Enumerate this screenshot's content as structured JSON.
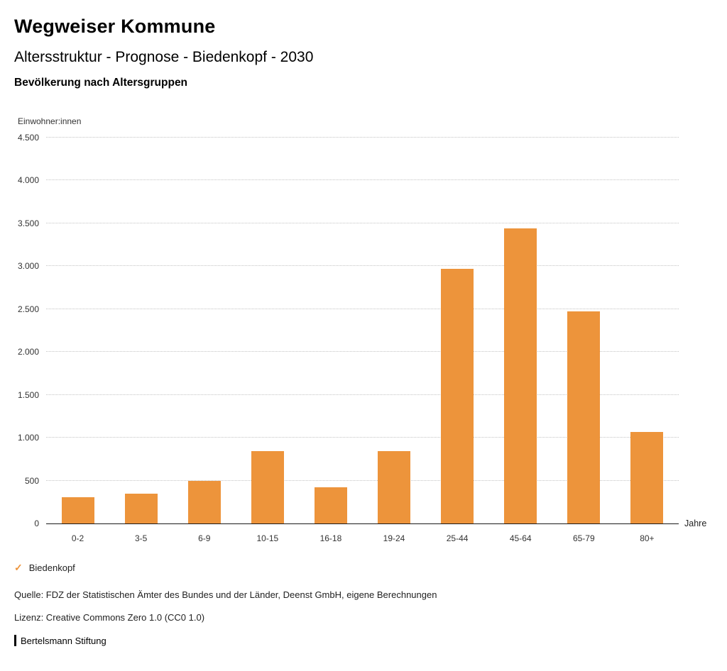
{
  "header": {
    "title": "Wegweiser Kommune",
    "subtitle": "Altersstruktur - Prognose - Biedenkopf - 2030",
    "chart_heading": "Bevölkerung nach Altersgruppen"
  },
  "chart_data": {
    "type": "bar",
    "title": "Bevölkerung nach Altersgruppen",
    "unit_label": "Einwohner:innen",
    "xlabel": "Jahre",
    "categories": [
      "0-2",
      "3-5",
      "6-9",
      "10-15",
      "16-18",
      "19-24",
      "25-44",
      "45-64",
      "65-79",
      "80+"
    ],
    "values": [
      310,
      350,
      500,
      840,
      420,
      845,
      2970,
      3445,
      2470,
      1070
    ],
    "series": [
      {
        "name": "Biedenkopf",
        "values": [
          310,
          350,
          500,
          840,
          420,
          845,
          2970,
          3445,
          2470,
          1070
        ]
      }
    ],
    "ylim": [
      0,
      4500
    ],
    "ytick_step": 500,
    "ytick_labels": [
      "0",
      "500",
      "1.000",
      "1.500",
      "2.000",
      "2.500",
      "3.000",
      "3.500",
      "4.000",
      "4.500"
    ],
    "grid": "horizontal-dotted",
    "legend_position": "bottom-left",
    "bar_color": "#ED943B"
  },
  "legend": {
    "check_icon": "✓",
    "label": "Biedenkopf"
  },
  "footer": {
    "source": "Quelle: FDZ der Statistischen Ämter des Bundes und der Länder, Deenst GmbH, eigene Berechnungen",
    "license": "Lizenz: Creative Commons Zero 1.0 (CC0 1.0)",
    "branding": "Bertelsmann Stiftung"
  },
  "colors": {
    "accent_orange": "#ED943B",
    "gridline": "#c3c3c3",
    "axis": "#1a1a1a"
  }
}
